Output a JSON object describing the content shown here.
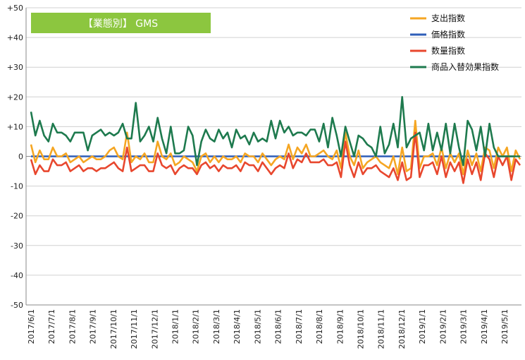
{
  "chart_data": {
    "type": "line",
    "title": "【業態別】 GMS",
    "ylim": [
      -50,
      50
    ],
    "yticks": [
      50,
      40,
      30,
      20,
      10,
      0,
      -10,
      -20,
      -30,
      -40,
      -50
    ],
    "ytick_labels": [
      "+50",
      "+40",
      "+30",
      "+20",
      "+10",
      "0",
      "-10",
      "-20",
      "-30",
      "-40",
      "-50"
    ],
    "grid": true,
    "legend_position": "top-right",
    "x_tick_labels": [
      "2017/6/1",
      "2017/7/1",
      "2017/8/1",
      "2017/9/1",
      "2017/10/1",
      "2017/11/1",
      "2017/12/1",
      "2018/1/1",
      "2018/2/1",
      "2018/3/1",
      "2018/4/1",
      "2018/5/1",
      "2018/6/1",
      "2018/7/1",
      "2018/8/1",
      "2018/9/1",
      "2018/10/1",
      "2018/11/1",
      "2018/12/1",
      "2019/1/1",
      "2019/2/1",
      "2019/3/1",
      "2019/4/1",
      "2019/5/1"
    ],
    "series": [
      {
        "name": "支出指数",
        "color": "#F5A623",
        "values": [
          4,
          -2,
          2,
          -1,
          -1,
          3,
          0,
          0,
          1,
          -2,
          -1,
          0,
          -2,
          -1,
          0,
          -1,
          -1,
          0,
          2,
          3,
          0,
          -1,
          8,
          -2,
          0,
          -1,
          1,
          -2,
          -2,
          5,
          0,
          -1,
          1,
          -3,
          -2,
          0,
          -1,
          -2,
          -5,
          0,
          1,
          -2,
          0,
          -2,
          0,
          -1,
          -1,
          0,
          -2,
          1,
          0,
          0,
          -2,
          1,
          -1,
          -3,
          -1,
          0,
          -1,
          4,
          -1,
          3,
          1,
          4,
          0,
          0,
          1,
          2,
          0,
          -1,
          2,
          -4,
          8,
          0,
          -3,
          2,
          -4,
          -2,
          -1,
          0,
          -2,
          -3,
          -4,
          0,
          -6,
          3,
          -5,
          -4,
          12,
          -4,
          0,
          0,
          1,
          -3,
          3,
          -4,
          1,
          -2,
          1,
          -6,
          2,
          -3,
          1,
          -5,
          3,
          2,
          -4,
          3,
          0,
          3,
          -5,
          2,
          -1
        ]
      },
      {
        "name": "価格指数",
        "color": "#2E5EB8",
        "values": [
          0,
          0,
          0,
          0,
          0,
          0,
          0,
          0,
          0,
          0,
          0,
          0,
          0,
          0,
          0,
          0,
          0,
          0,
          0,
          0,
          0,
          0,
          0,
          0,
          0,
          0,
          0,
          0,
          0,
          0,
          0,
          0,
          0,
          0,
          0,
          0,
          0,
          0,
          0,
          0,
          0,
          0,
          0,
          0,
          0,
          0,
          0,
          0,
          0,
          0,
          0,
          0,
          0,
          0,
          0,
          0,
          0,
          0,
          0,
          0,
          0,
          0,
          0,
          0,
          0,
          0,
          0,
          0,
          0,
          0,
          0,
          0,
          0,
          0,
          0,
          0,
          0,
          0,
          0,
          0,
          0,
          0,
          0,
          0,
          0,
          0,
          0,
          0,
          0,
          0,
          0,
          0,
          0,
          0,
          0,
          0,
          0,
          0,
          0,
          0,
          0,
          0,
          0,
          0,
          0,
          0,
          0,
          0,
          0,
          0,
          0,
          0
        ]
      },
      {
        "name": "数量指数",
        "color": "#E8472E",
        "values": [
          -1,
          -6,
          -3,
          -5,
          -5,
          -1,
          -3,
          -3,
          -2,
          -5,
          -4,
          -3,
          -5,
          -4,
          -4,
          -5,
          -4,
          -4,
          -3,
          -2,
          -4,
          -5,
          3,
          -5,
          -4,
          -3,
          -3,
          -5,
          -5,
          1,
          -3,
          -4,
          -3,
          -6,
          -4,
          -3,
          -4,
          -4,
          -6,
          -3,
          -2,
          -4,
          -3,
          -5,
          -3,
          -4,
          -4,
          -3,
          -5,
          -2,
          -3,
          -3,
          -5,
          -2,
          -4,
          -6,
          -4,
          -3,
          -4,
          1,
          -4,
          -1,
          -2,
          1,
          -2,
          -2,
          -2,
          -1,
          -3,
          -3,
          -2,
          -7,
          5,
          -3,
          -7,
          -2,
          -6,
          -4,
          -4,
          -3,
          -5,
          -6,
          -7,
          -4,
          -8,
          -2,
          -8,
          -7,
          8,
          -7,
          -3,
          -3,
          -2,
          -6,
          0,
          -7,
          -2,
          -5,
          -2,
          -9,
          -1,
          -6,
          -2,
          -8,
          1,
          -1,
          -7,
          0,
          -3,
          0,
          -8,
          -1,
          -3
        ]
      },
      {
        "name": "商品入替効果指数",
        "color": "#1E7A4E",
        "values": [
          15,
          7,
          12,
          7,
          5,
          11,
          8,
          8,
          7,
          5,
          8,
          8,
          8,
          2,
          7,
          8,
          9,
          7,
          8,
          7,
          8,
          11,
          6,
          6,
          18,
          5,
          7,
          10,
          5,
          13,
          6,
          1,
          10,
          1,
          1,
          2,
          10,
          7,
          -3,
          5,
          9,
          6,
          5,
          9,
          6,
          8,
          3,
          9,
          6,
          7,
          4,
          8,
          5,
          6,
          5,
          12,
          6,
          12,
          8,
          10,
          7,
          8,
          8,
          7,
          9,
          9,
          5,
          11,
          3,
          13,
          7,
          0,
          10,
          5,
          0,
          7,
          6,
          4,
          3,
          0,
          10,
          1,
          4,
          11,
          3,
          20,
          3,
          6,
          7,
          8,
          2,
          11,
          2,
          8,
          2,
          11,
          1,
          11,
          3,
          -3,
          12,
          9,
          2,
          10,
          0,
          11,
          3,
          0,
          0,
          0,
          0,
          0,
          0
        ]
      }
    ]
  }
}
